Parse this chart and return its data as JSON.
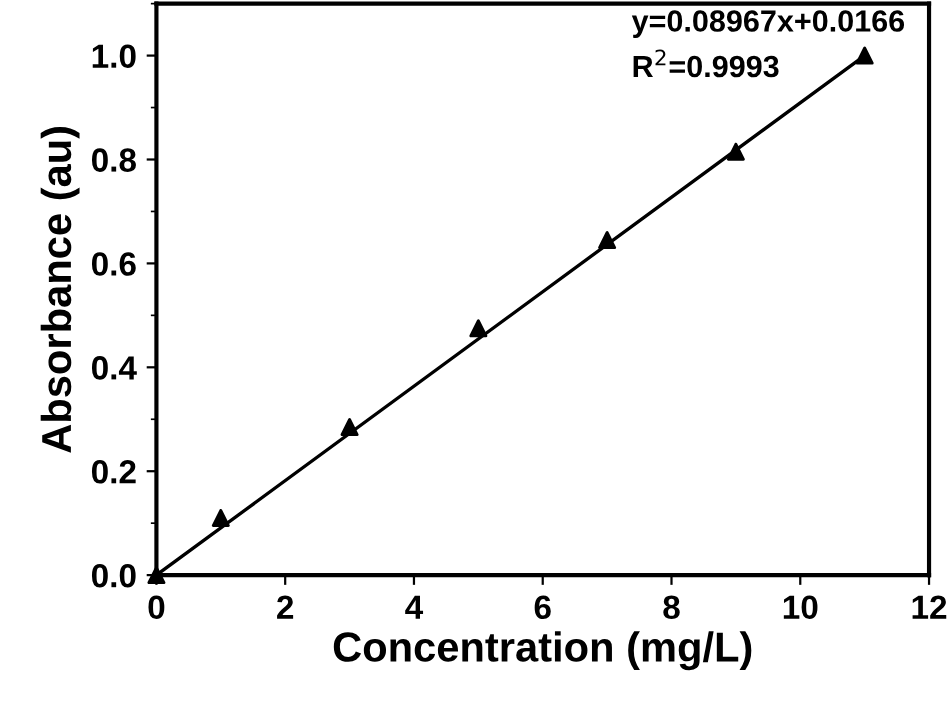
{
  "chart_data": {
    "type": "scatter",
    "xlabel": "Concentration (mg/L)",
    "ylabel": "Absorbance (au)",
    "series": [
      {
        "color": "#000000",
        "marker": "triangle",
        "x": [
          0,
          1,
          3,
          5,
          7,
          9,
          11
        ],
        "values": [
          0.0,
          0.11,
          0.285,
          0.475,
          0.645,
          0.815,
          1.0
        ]
      },
      {
        "type": "line",
        "color": "#000000",
        "marker": "none",
        "line_style": "solid",
        "x": [
          0,
          11
        ],
        "values": [
          0.0,
          1.0
        ]
      }
    ],
    "annotations": [
      "y=0.08967x+0.0166",
      "R$^{2}$=0.9993"
    ],
    "xlim": [
      0,
      12
    ],
    "xticks": [
      0,
      2,
      4,
      6,
      8,
      10,
      12
    ],
    "ylim": [
      0,
      1.1
    ],
    "yticks": [
      {
        "value": 0,
        "label": "0.0"
      },
      0.2,
      0.4,
      0.6,
      0.8,
      {
        "value": 1,
        "label": "1.0"
      }
    ],
    "grid": false,
    "legend": false
  }
}
